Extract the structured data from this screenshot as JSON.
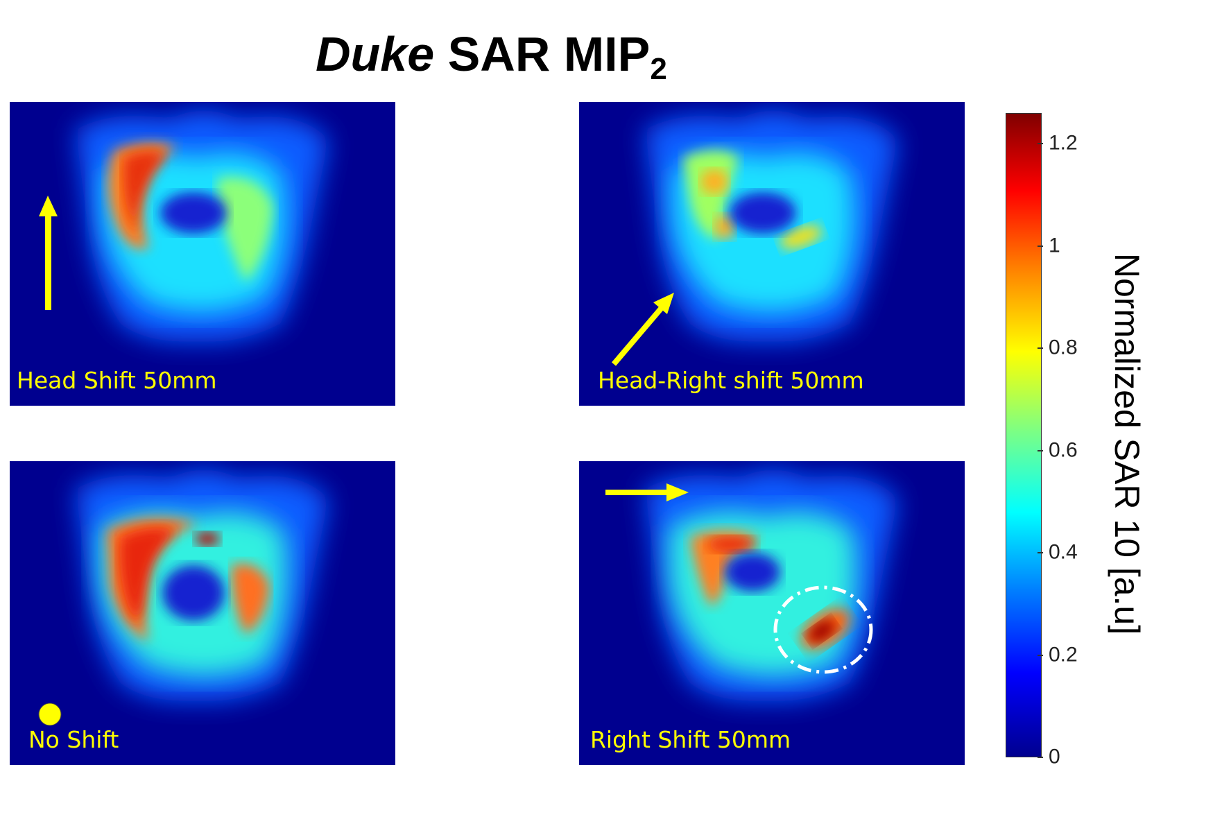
{
  "title": {
    "italic": "Duke",
    "main": " SAR MIP",
    "sub": "2"
  },
  "panels": [
    {
      "label": "Head Shift 50mm",
      "indicator": "up-arrow-icon"
    },
    {
      "label": "Head-Right shift 50mm",
      "indicator": "diagonal-arrow-icon"
    },
    {
      "label": "No Shift",
      "indicator": "dot-icon"
    },
    {
      "label": "Right Shift 50mm",
      "indicator": "right-arrow-icon"
    }
  ],
  "colorbar": {
    "title": "Normalized SAR 10 [a.u]",
    "min": 0,
    "max": 1.26,
    "ticks": [
      "0",
      "0.2",
      "0.4",
      "0.6",
      "0.8",
      "1",
      "1.2"
    ],
    "colormap": "jet"
  },
  "colors": {
    "background_dark": "#00008f",
    "annotation": "#ffff00",
    "circle": "#ffffff"
  }
}
